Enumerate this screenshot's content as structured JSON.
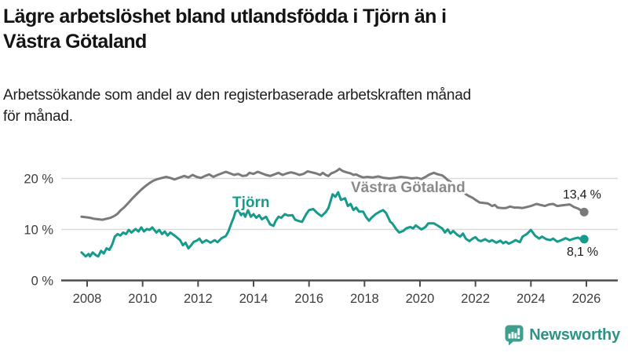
{
  "header": {
    "title_line1": "Lägre arbetslöshet bland utlandsfödda i Tjörn än i",
    "title_line2": "Västra Götaland",
    "subtitle_line1": "Arbetssökande som andel av den registerbaserade arbetskraften månad",
    "subtitle_line2": "för månad."
  },
  "branding": {
    "logo_text": "Newsworthy",
    "logo_color": "#3f9e8e",
    "text_color": "#2f9285"
  },
  "chart_data": {
    "type": "line",
    "title": "Lägre arbetslöshet bland utlandsfödda i Tjörn än i Västra Götaland",
    "subtitle": "Arbetssökande som andel av den registerbaserade arbetskraften månad för månad.",
    "xlabel": "",
    "ylabel": "",
    "xlim": [
      2007.6,
      2027.1
    ],
    "ylim": [
      0,
      25
    ],
    "grid": "horizontal-gridlines-at-10-and-20",
    "legend": "inline-series-labels",
    "axis_color": "#4d4d4d",
    "grid_color": "#d9d9d9",
    "tick_label_color": "#3d3d3d",
    "y_axis": {
      "unit": "%",
      "ticks": [
        {
          "v": 0,
          "label": "0 %"
        },
        {
          "v": 10,
          "label": "10 %"
        },
        {
          "v": 20,
          "label": "20 %"
        }
      ]
    },
    "x_axis": {
      "ticks": [
        {
          "v": 2008,
          "label": "2008"
        },
        {
          "v": 2010,
          "label": "2010"
        },
        {
          "v": 2012,
          "label": "2012"
        },
        {
          "v": 2014,
          "label": "2014"
        },
        {
          "v": 2016,
          "label": "2016"
        },
        {
          "v": 2018,
          "label": "2018"
        },
        {
          "v": 2020,
          "label": "2020"
        },
        {
          "v": 2022,
          "label": "2022"
        },
        {
          "v": 2024,
          "label": "2024"
        },
        {
          "v": 2026,
          "label": "2026"
        }
      ]
    },
    "series": [
      {
        "name": "Västra Götaland",
        "color": "#7a7a7a",
        "label_color": "#8a8a8a",
        "end_label": "13,4 %",
        "end_value": 13.4,
        "points": [
          [
            2007.8,
            12.5
          ],
          [
            2007.95,
            12.4
          ],
          [
            2008.1,
            12.3
          ],
          [
            2008.25,
            12.1
          ],
          [
            2008.4,
            12.0
          ],
          [
            2008.55,
            11.9
          ],
          [
            2008.7,
            12.1
          ],
          [
            2008.85,
            12.3
          ],
          [
            2009.0,
            12.7
          ],
          [
            2009.1,
            13.1
          ],
          [
            2009.2,
            13.7
          ],
          [
            2009.35,
            14.4
          ],
          [
            2009.5,
            15.3
          ],
          [
            2009.65,
            16.2
          ],
          [
            2009.8,
            17.0
          ],
          [
            2009.95,
            17.8
          ],
          [
            2010.1,
            18.5
          ],
          [
            2010.25,
            19.1
          ],
          [
            2010.4,
            19.6
          ],
          [
            2010.55,
            19.9
          ],
          [
            2010.7,
            20.1
          ],
          [
            2010.85,
            20.3
          ],
          [
            2011.0,
            20.1
          ],
          [
            2011.15,
            19.8
          ],
          [
            2011.3,
            20.1
          ],
          [
            2011.5,
            20.5
          ],
          [
            2011.65,
            20.2
          ],
          [
            2011.8,
            20.7
          ],
          [
            2011.95,
            20.3
          ],
          [
            2012.1,
            20.1
          ],
          [
            2012.25,
            20.5
          ],
          [
            2012.4,
            20.8
          ],
          [
            2012.55,
            20.3
          ],
          [
            2012.7,
            20.7
          ],
          [
            2012.85,
            21.0
          ],
          [
            2013.0,
            21.3
          ],
          [
            2013.15,
            21.0
          ],
          [
            2013.3,
            20.7
          ],
          [
            2013.45,
            20.9
          ],
          [
            2013.6,
            20.5
          ],
          [
            2013.75,
            20.6
          ],
          [
            2013.85,
            21.1
          ],
          [
            2014.0,
            20.9
          ],
          [
            2014.15,
            21.3
          ],
          [
            2014.3,
            21.0
          ],
          [
            2014.45,
            20.7
          ],
          [
            2014.6,
            20.5
          ],
          [
            2014.75,
            20.8
          ],
          [
            2014.9,
            21.1
          ],
          [
            2015.05,
            20.7
          ],
          [
            2015.2,
            21.0
          ],
          [
            2015.35,
            21.2
          ],
          [
            2015.5,
            21.0
          ],
          [
            2015.65,
            20.7
          ],
          [
            2015.8,
            20.9
          ],
          [
            2015.95,
            21.4
          ],
          [
            2016.1,
            21.2
          ],
          [
            2016.25,
            21.0
          ],
          [
            2016.4,
            20.7
          ],
          [
            2016.5,
            21.1
          ],
          [
            2016.6,
            20.7
          ],
          [
            2016.7,
            20.5
          ],
          [
            2016.8,
            21.0
          ],
          [
            2016.9,
            21.2
          ],
          [
            2017.0,
            21.5
          ],
          [
            2017.1,
            21.9
          ],
          [
            2017.2,
            21.5
          ],
          [
            2017.35,
            21.2
          ],
          [
            2017.5,
            21.0
          ],
          [
            2017.6,
            20.7
          ],
          [
            2017.7,
            20.8
          ],
          [
            2017.8,
            20.5
          ],
          [
            2017.95,
            20.2
          ],
          [
            2018.1,
            20.3
          ],
          [
            2018.3,
            20.2
          ],
          [
            2018.5,
            20.4
          ],
          [
            2018.7,
            20.1
          ],
          [
            2018.9,
            20.0
          ],
          [
            2019.1,
            20.1
          ],
          [
            2019.3,
            20.3
          ],
          [
            2019.5,
            20.2
          ],
          [
            2019.7,
            20.0
          ],
          [
            2019.9,
            20.1
          ],
          [
            2020.05,
            19.9
          ],
          [
            2020.2,
            20.3
          ],
          [
            2020.35,
            20.8
          ],
          [
            2020.5,
            21.1
          ],
          [
            2020.65,
            20.8
          ],
          [
            2020.8,
            20.6
          ],
          [
            2020.9,
            20.2
          ],
          [
            2021.0,
            19.7
          ],
          [
            2021.15,
            19.2
          ],
          [
            2021.3,
            18.5
          ],
          [
            2021.45,
            17.8
          ],
          [
            2021.6,
            17.1
          ],
          [
            2021.75,
            16.6
          ],
          [
            2021.9,
            16.2
          ],
          [
            2022.0,
            15.8
          ],
          [
            2022.15,
            15.3
          ],
          [
            2022.3,
            15.2
          ],
          [
            2022.45,
            15.1
          ],
          [
            2022.6,
            14.6
          ],
          [
            2022.7,
            14.8
          ],
          [
            2022.8,
            14.3
          ],
          [
            2022.95,
            14.2
          ],
          [
            2023.1,
            14.2
          ],
          [
            2023.25,
            14.5
          ],
          [
            2023.4,
            14.3
          ],
          [
            2023.55,
            14.3
          ],
          [
            2023.7,
            14.2
          ],
          [
            2023.85,
            14.4
          ],
          [
            2024.0,
            14.6
          ],
          [
            2024.2,
            15.0
          ],
          [
            2024.35,
            14.8
          ],
          [
            2024.5,
            14.6
          ],
          [
            2024.65,
            14.9
          ],
          [
            2024.8,
            15.0
          ],
          [
            2024.95,
            14.6
          ],
          [
            2025.1,
            14.7
          ],
          [
            2025.25,
            14.8
          ],
          [
            2025.4,
            14.9
          ],
          [
            2025.55,
            14.4
          ],
          [
            2025.7,
            14.1
          ],
          [
            2025.92,
            13.4
          ]
        ]
      },
      {
        "name": "Tjörn",
        "color": "#169a8c",
        "label_color": "#169a8c",
        "end_label": "8,1 %",
        "end_value": 8.1,
        "points": [
          [
            2007.8,
            5.5
          ],
          [
            2007.95,
            4.7
          ],
          [
            2008.05,
            5.2
          ],
          [
            2008.1,
            4.7
          ],
          [
            2008.2,
            5.5
          ],
          [
            2008.3,
            5.0
          ],
          [
            2008.4,
            4.7
          ],
          [
            2008.5,
            5.8
          ],
          [
            2008.6,
            5.3
          ],
          [
            2008.7,
            6.3
          ],
          [
            2008.8,
            6.0
          ],
          [
            2008.9,
            7.0
          ],
          [
            2009.0,
            8.6
          ],
          [
            2009.1,
            9.1
          ],
          [
            2009.2,
            8.8
          ],
          [
            2009.3,
            9.4
          ],
          [
            2009.4,
            9.1
          ],
          [
            2009.5,
            9.9
          ],
          [
            2009.6,
            9.4
          ],
          [
            2009.75,
            10.1
          ],
          [
            2009.85,
            9.6
          ],
          [
            2009.95,
            10.4
          ],
          [
            2010.05,
            9.6
          ],
          [
            2010.15,
            10.1
          ],
          [
            2010.25,
            9.9
          ],
          [
            2010.35,
            10.4
          ],
          [
            2010.5,
            9.4
          ],
          [
            2010.6,
            9.9
          ],
          [
            2010.7,
            9.1
          ],
          [
            2010.8,
            9.6
          ],
          [
            2010.9,
            8.8
          ],
          [
            2011.0,
            9.4
          ],
          [
            2011.2,
            8.6
          ],
          [
            2011.35,
            7.9
          ],
          [
            2011.45,
            6.9
          ],
          [
            2011.55,
            7.4
          ],
          [
            2011.65,
            6.3
          ],
          [
            2011.75,
            6.9
          ],
          [
            2011.85,
            7.6
          ],
          [
            2011.95,
            7.8
          ],
          [
            2012.05,
            8.2
          ],
          [
            2012.15,
            7.4
          ],
          [
            2012.3,
            7.9
          ],
          [
            2012.45,
            7.4
          ],
          [
            2012.6,
            7.9
          ],
          [
            2012.7,
            7.5
          ],
          [
            2012.85,
            8.3
          ],
          [
            2013.0,
            8.7
          ],
          [
            2013.1,
            9.7
          ],
          [
            2013.2,
            11.2
          ],
          [
            2013.28,
            12.3
          ],
          [
            2013.35,
            13.5
          ],
          [
            2013.45,
            13.8
          ],
          [
            2013.55,
            12.8
          ],
          [
            2013.63,
            13.3
          ],
          [
            2013.7,
            12.5
          ],
          [
            2013.8,
            13.8
          ],
          [
            2013.9,
            12.5
          ],
          [
            2014.0,
            13.0
          ],
          [
            2014.1,
            12.3
          ],
          [
            2014.2,
            12.8
          ],
          [
            2014.3,
            12.0
          ],
          [
            2014.45,
            12.5
          ],
          [
            2014.6,
            11.0
          ],
          [
            2014.72,
            10.7
          ],
          [
            2014.8,
            11.7
          ],
          [
            2014.9,
            12.5
          ],
          [
            2015.0,
            12.3
          ],
          [
            2015.13,
            13.0
          ],
          [
            2015.25,
            12.7
          ],
          [
            2015.4,
            12.8
          ],
          [
            2015.5,
            11.9
          ],
          [
            2015.6,
            11.7
          ],
          [
            2015.75,
            11.5
          ],
          [
            2015.9,
            13.0
          ],
          [
            2016.0,
            13.8
          ],
          [
            2016.15,
            14.0
          ],
          [
            2016.3,
            13.2
          ],
          [
            2016.45,
            12.6
          ],
          [
            2016.6,
            13.4
          ],
          [
            2016.7,
            14.2
          ],
          [
            2016.85,
            16.9
          ],
          [
            2016.95,
            16.4
          ],
          [
            2017.05,
            17.3
          ],
          [
            2017.15,
            15.8
          ],
          [
            2017.3,
            16.1
          ],
          [
            2017.4,
            14.6
          ],
          [
            2017.5,
            15.0
          ],
          [
            2017.6,
            13.8
          ],
          [
            2017.7,
            14.3
          ],
          [
            2017.8,
            13.5
          ],
          [
            2017.95,
            13.5
          ],
          [
            2018.05,
            12.5
          ],
          [
            2018.16,
            11.7
          ],
          [
            2018.25,
            12.3
          ],
          [
            2018.4,
            13.0
          ],
          [
            2018.55,
            13.5
          ],
          [
            2018.67,
            13.8
          ],
          [
            2018.78,
            13.2
          ],
          [
            2018.93,
            11.5
          ],
          [
            2019.0,
            11.2
          ],
          [
            2019.15,
            10.0
          ],
          [
            2019.25,
            9.4
          ],
          [
            2019.4,
            9.7
          ],
          [
            2019.5,
            10.2
          ],
          [
            2019.65,
            10.5
          ],
          [
            2019.75,
            10.2
          ],
          [
            2019.85,
            10.8
          ],
          [
            2020.05,
            10.0
          ],
          [
            2020.2,
            10.5
          ],
          [
            2020.3,
            11.2
          ],
          [
            2020.5,
            11.2
          ],
          [
            2020.65,
            10.7
          ],
          [
            2020.8,
            10.2
          ],
          [
            2020.9,
            9.4
          ],
          [
            2021.0,
            10.0
          ],
          [
            2021.1,
            9.2
          ],
          [
            2021.2,
            9.7
          ],
          [
            2021.35,
            8.9
          ],
          [
            2021.45,
            8.6
          ],
          [
            2021.55,
            9.2
          ],
          [
            2021.65,
            8.2
          ],
          [
            2021.78,
            7.7
          ],
          [
            2021.9,
            8.2
          ],
          [
            2022.0,
            8.5
          ],
          [
            2022.1,
            7.9
          ],
          [
            2022.2,
            7.7
          ],
          [
            2022.35,
            8.1
          ],
          [
            2022.5,
            7.6
          ],
          [
            2022.6,
            7.9
          ],
          [
            2022.75,
            7.4
          ],
          [
            2022.9,
            7.8
          ],
          [
            2023.0,
            7.3
          ],
          [
            2023.1,
            7.6
          ],
          [
            2023.2,
            7.2
          ],
          [
            2023.35,
            7.6
          ],
          [
            2023.45,
            7.9
          ],
          [
            2023.6,
            7.5
          ],
          [
            2023.7,
            8.6
          ],
          [
            2023.85,
            9.1
          ],
          [
            2024.0,
            9.9
          ],
          [
            2024.15,
            8.8
          ],
          [
            2024.3,
            8.2
          ],
          [
            2024.4,
            8.6
          ],
          [
            2024.55,
            8.1
          ],
          [
            2024.7,
            7.9
          ],
          [
            2024.8,
            8.2
          ],
          [
            2024.95,
            7.6
          ],
          [
            2025.1,
            7.9
          ],
          [
            2025.25,
            8.3
          ],
          [
            2025.4,
            7.9
          ],
          [
            2025.55,
            8.2
          ],
          [
            2025.7,
            8.4
          ],
          [
            2025.8,
            8.1
          ],
          [
            2025.92,
            8.1
          ]
        ]
      }
    ]
  }
}
